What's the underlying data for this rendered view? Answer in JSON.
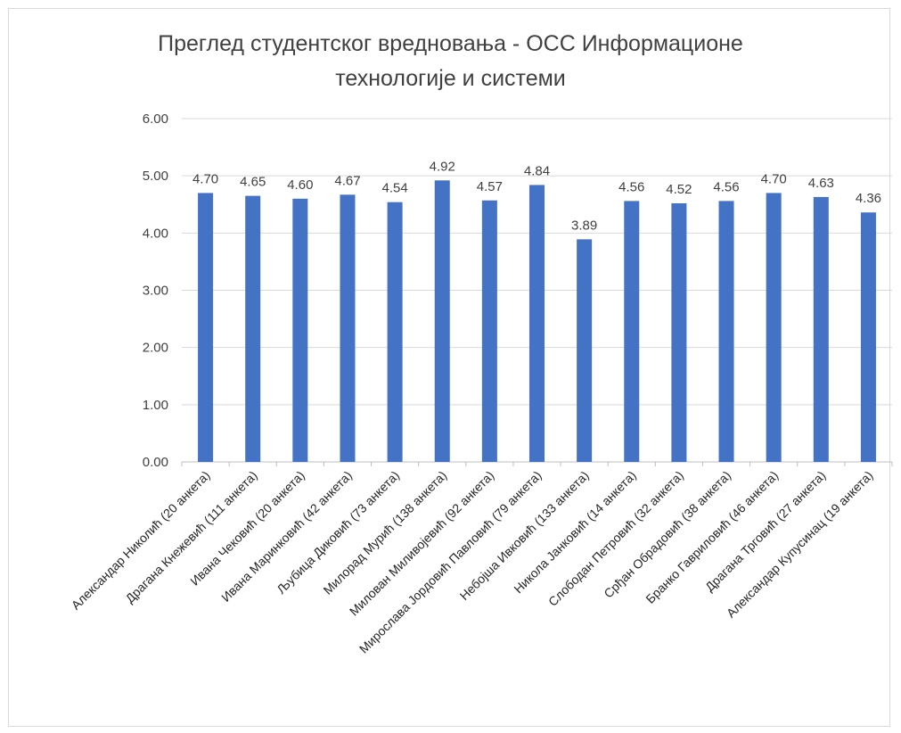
{
  "chart_data": {
    "type": "bar",
    "title": "Преглед студентског вредновања - ОСС Информационе технологије и системи",
    "title_lines": [
      "Преглед студентског вредновања - ОСС Информационе",
      "технологије и системи"
    ],
    "xlabel": "",
    "ylabel": "",
    "ylim": [
      0,
      6
    ],
    "yticks": [
      "0.00",
      "1.00",
      "2.00",
      "3.00",
      "4.00",
      "5.00",
      "6.00"
    ],
    "grid": true,
    "legend": "none",
    "bar_color": "#4472c4",
    "categories": [
      "Александар Николић (20 анкета)",
      "Драгана Кнежевић (111 анкета)",
      "Ивана Чековић (20 анкета)",
      "Ивана Маринковић (42 анкета)",
      "Љубица Диковић (73 анкета)",
      "Милорад Мурић (138 анкета)",
      "Милован Миливојевић (92 анкета)",
      "Мирослава Јордовић Павловић (79 анкета)",
      "Небојша Ивковић (133 анкета)",
      "Никола Јанковић (14 анкета)",
      "Слободан Петровић (32 анкета)",
      "Срђан Обрадовић (38 анкета)",
      "Бранко Гавриловић (46 анкета)",
      "Драгана Трговић (27 анкета)",
      "Александар Купусинац (19 анкета)"
    ],
    "values": [
      4.7,
      4.65,
      4.6,
      4.67,
      4.54,
      4.92,
      4.57,
      4.84,
      3.89,
      4.56,
      4.52,
      4.56,
      4.7,
      4.63,
      4.36
    ],
    "value_labels": [
      "4.70",
      "4.65",
      "4.60",
      "4.67",
      "4.54",
      "4.92",
      "4.57",
      "4.84",
      "3.89",
      "4.56",
      "4.52",
      "4.56",
      "4.70",
      "4.63",
      "4.36"
    ]
  }
}
